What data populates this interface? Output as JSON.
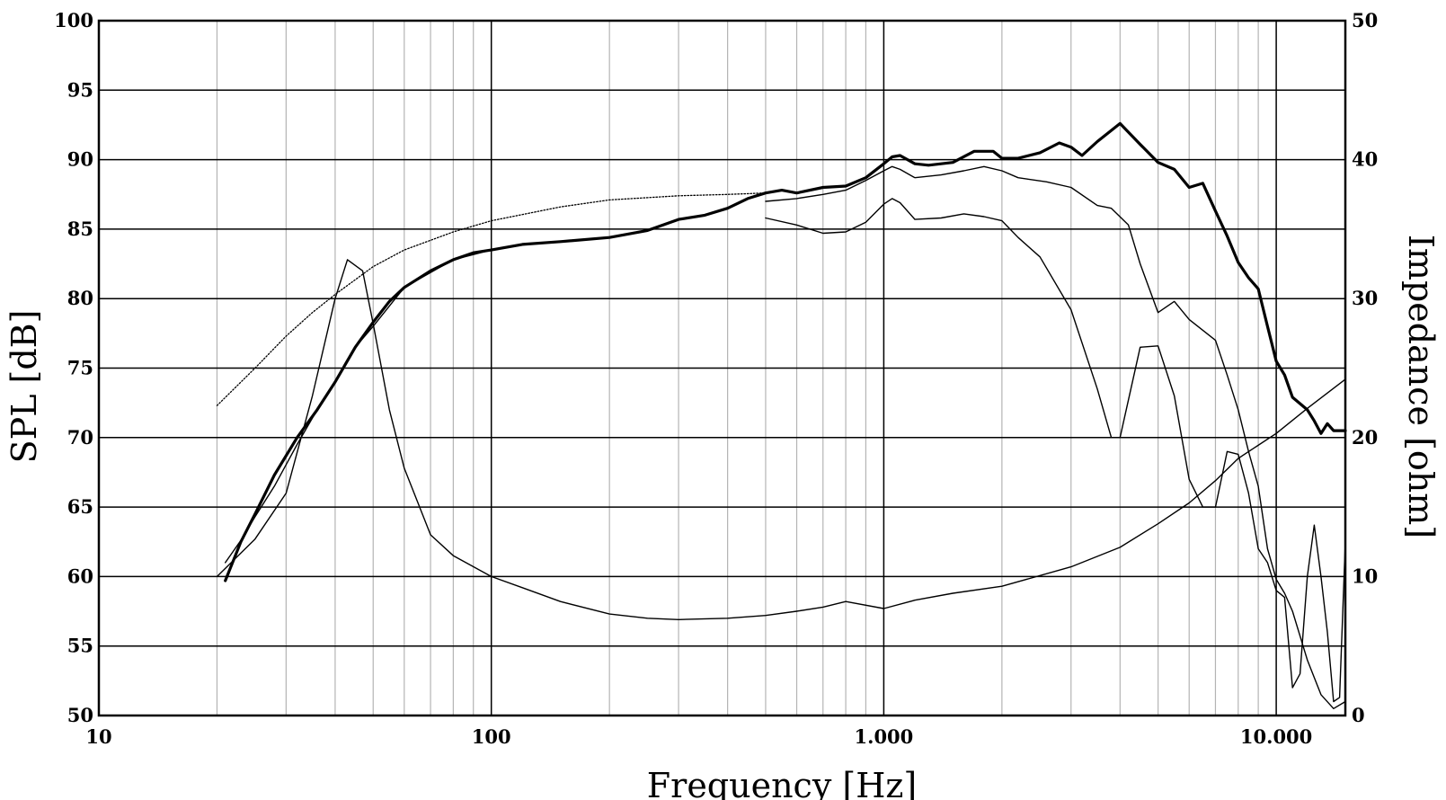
{
  "chart_data": {
    "type": "line",
    "title": "",
    "xlabel": "Frequency [Hz]",
    "ylabel": "SPL [dB]",
    "y2label": "Impedance [ohm]",
    "x_scale": "log",
    "xlim": [
      10,
      15000
    ],
    "ylim": [
      50,
      100
    ],
    "y2lim": [
      0,
      50
    ],
    "grid": true,
    "x_ticks": [
      {
        "value": 10,
        "label": "10"
      },
      {
        "value": 100,
        "label": "100"
      },
      {
        "value": 1000,
        "label": "1.000"
      },
      {
        "value": 10000,
        "label": "10.000"
      }
    ],
    "y_ticks": [
      {
        "value": 50,
        "label": "50"
      },
      {
        "value": 55,
        "label": "55"
      },
      {
        "value": 60,
        "label": "60"
      },
      {
        "value": 65,
        "label": "65"
      },
      {
        "value": 70,
        "label": "70"
      },
      {
        "value": 75,
        "label": "75"
      },
      {
        "value": 80,
        "label": "80"
      },
      {
        "value": 85,
        "label": "85"
      },
      {
        "value": 90,
        "label": "90"
      },
      {
        "value": 95,
        "label": "95"
      },
      {
        "value": 100,
        "label": "100"
      }
    ],
    "y2_ticks": [
      {
        "value": 0,
        "label": "0"
      },
      {
        "value": 10,
        "label": "10"
      },
      {
        "value": 20,
        "label": "20"
      },
      {
        "value": 30,
        "label": "30"
      },
      {
        "value": 40,
        "label": "40"
      },
      {
        "value": 50,
        "label": "50"
      }
    ],
    "series": [
      {
        "axis": "left",
        "style": "thick",
        "points": [
          [
            21,
            59.7
          ],
          [
            23,
            62.5
          ],
          [
            25,
            64.5
          ],
          [
            28,
            67.3
          ],
          [
            32,
            70
          ],
          [
            36,
            72
          ],
          [
            40,
            74
          ],
          [
            45,
            76.5
          ],
          [
            50,
            78.3
          ],
          [
            55,
            79.8
          ],
          [
            60,
            80.8
          ],
          [
            70,
            82
          ],
          [
            80,
            82.8
          ],
          [
            90,
            83.3
          ],
          [
            100,
            83.5
          ],
          [
            120,
            83.9
          ],
          [
            150,
            84.1
          ],
          [
            200,
            84.4
          ],
          [
            250,
            84.9
          ],
          [
            300,
            85.7
          ],
          [
            350,
            86
          ],
          [
            400,
            86.5
          ],
          [
            450,
            87.2
          ],
          [
            500,
            87.6
          ],
          [
            550,
            87.8
          ],
          [
            600,
            87.6
          ],
          [
            700,
            88
          ],
          [
            800,
            88.1
          ],
          [
            900,
            88.7
          ],
          [
            1000,
            89.7
          ],
          [
            1050,
            90.2
          ],
          [
            1100,
            90.3
          ],
          [
            1200,
            89.7
          ],
          [
            1300,
            89.6
          ],
          [
            1500,
            89.8
          ],
          [
            1700,
            90.6
          ],
          [
            1900,
            90.6
          ],
          [
            2000,
            90.1
          ],
          [
            2200,
            90.1
          ],
          [
            2500,
            90.5
          ],
          [
            2800,
            91.2
          ],
          [
            3000,
            90.9
          ],
          [
            3200,
            90.3
          ],
          [
            3500,
            91.3
          ],
          [
            4000,
            92.6
          ],
          [
            4500,
            91.1
          ],
          [
            5000,
            89.8
          ],
          [
            5500,
            89.3
          ],
          [
            6000,
            88
          ],
          [
            6500,
            88.3
          ],
          [
            7000,
            86.3
          ],
          [
            7500,
            84.5
          ],
          [
            8000,
            82.6
          ],
          [
            8500,
            81.5
          ],
          [
            9000,
            80.7
          ],
          [
            9500,
            78
          ],
          [
            10000,
            75.5
          ],
          [
            10500,
            74.5
          ],
          [
            11000,
            72.9
          ],
          [
            12000,
            72
          ],
          [
            12500,
            71.2
          ],
          [
            13000,
            70.3
          ],
          [
            13500,
            71
          ],
          [
            14000,
            70.5
          ],
          [
            15000,
            70.5
          ]
        ]
      },
      {
        "axis": "left",
        "style": "thin",
        "points": [
          [
            21,
            61
          ],
          [
            23,
            62.6
          ],
          [
            25,
            64.3
          ],
          [
            28,
            66.5
          ],
          [
            32,
            69.5
          ],
          [
            36,
            72
          ],
          [
            40,
            74
          ],
          [
            45,
            76.5
          ],
          [
            50,
            78
          ],
          [
            60,
            80.8
          ],
          [
            80,
            82.8
          ],
          [
            100,
            83.5
          ]
        ]
      },
      {
        "axis": "left",
        "style": "thin",
        "points": [
          [
            500,
            87
          ],
          [
            600,
            87.2
          ],
          [
            700,
            87.5
          ],
          [
            800,
            87.8
          ],
          [
            900,
            88.5
          ],
          [
            1000,
            89.2
          ],
          [
            1050,
            89.5
          ],
          [
            1100,
            89.3
          ],
          [
            1200,
            88.7
          ],
          [
            1400,
            88.9
          ],
          [
            1600,
            89.2
          ],
          [
            1800,
            89.5
          ],
          [
            2000,
            89.2
          ],
          [
            2200,
            88.7
          ],
          [
            2600,
            88.4
          ],
          [
            3000,
            88
          ],
          [
            3500,
            86.7
          ],
          [
            3800,
            86.5
          ],
          [
            4200,
            85.3
          ],
          [
            4500,
            82.5
          ],
          [
            5000,
            79
          ],
          [
            5500,
            79.8
          ],
          [
            6000,
            78.5
          ],
          [
            7000,
            77
          ],
          [
            7500,
            74.5
          ],
          [
            8000,
            72
          ],
          [
            8500,
            69
          ],
          [
            9000,
            66.5
          ],
          [
            9500,
            62
          ],
          [
            10000,
            59.8
          ],
          [
            10500,
            58.8
          ],
          [
            11000,
            57.5
          ],
          [
            12000,
            54
          ],
          [
            13000,
            51.5
          ],
          [
            14000,
            50.5
          ],
          [
            15000,
            51
          ]
        ]
      },
      {
        "axis": "left",
        "style": "thin",
        "points": [
          [
            500,
            85.8
          ],
          [
            600,
            85.3
          ],
          [
            700,
            84.7
          ],
          [
            800,
            84.8
          ],
          [
            900,
            85.5
          ],
          [
            1000,
            86.8
          ],
          [
            1050,
            87.2
          ],
          [
            1100,
            86.9
          ],
          [
            1200,
            85.7
          ],
          [
            1400,
            85.8
          ],
          [
            1600,
            86.1
          ],
          [
            1800,
            85.9
          ],
          [
            2000,
            85.6
          ],
          [
            2200,
            84.4
          ],
          [
            2500,
            83
          ],
          [
            3000,
            79.2
          ],
          [
            3500,
            73.5
          ],
          [
            3800,
            70
          ],
          [
            4000,
            70
          ],
          [
            4500,
            76.5
          ],
          [
            5000,
            76.6
          ],
          [
            5500,
            73
          ],
          [
            6000,
            67
          ],
          [
            6500,
            65
          ],
          [
            7000,
            65
          ],
          [
            7500,
            69
          ],
          [
            8000,
            68.8
          ],
          [
            8500,
            66
          ],
          [
            9000,
            62
          ],
          [
            9500,
            61
          ],
          [
            10000,
            59
          ],
          [
            10500,
            58.5
          ],
          [
            11000,
            52
          ],
          [
            11500,
            53
          ],
          [
            12000,
            60
          ],
          [
            12500,
            63.7
          ],
          [
            13000,
            60
          ],
          [
            13500,
            56
          ],
          [
            14000,
            51
          ],
          [
            14500,
            51.3
          ],
          [
            15000,
            62.5
          ]
        ]
      },
      {
        "axis": "left",
        "style": "dotted",
        "points": [
          [
            20,
            72.3
          ],
          [
            25,
            75
          ],
          [
            30,
            77.3
          ],
          [
            35,
            79
          ],
          [
            40,
            80.3
          ],
          [
            50,
            82.3
          ],
          [
            60,
            83.5
          ],
          [
            80,
            84.8
          ],
          [
            100,
            85.6
          ],
          [
            150,
            86.6
          ],
          [
            200,
            87.1
          ],
          [
            300,
            87.4
          ],
          [
            400,
            87.5
          ],
          [
            500,
            87.6
          ]
        ]
      },
      {
        "axis": "right",
        "style": "thin",
        "points": [
          [
            20,
            10
          ],
          [
            25,
            12.7
          ],
          [
            30,
            16
          ],
          [
            35,
            23
          ],
          [
            40,
            30
          ],
          [
            43,
            32.8
          ],
          [
            47,
            32
          ],
          [
            50,
            28.2
          ],
          [
            55,
            22
          ],
          [
            60,
            17.8
          ],
          [
            70,
            13
          ],
          [
            80,
            11.5
          ],
          [
            100,
            10
          ],
          [
            120,
            9.2
          ],
          [
            150,
            8.2
          ],
          [
            200,
            7.3
          ],
          [
            250,
            7
          ],
          [
            300,
            6.9
          ],
          [
            400,
            7
          ],
          [
            500,
            7.2
          ],
          [
            600,
            7.5
          ],
          [
            700,
            7.8
          ],
          [
            800,
            8.2
          ],
          [
            1000,
            7.7
          ],
          [
            1200,
            8.3
          ],
          [
            1500,
            8.8
          ],
          [
            2000,
            9.3
          ],
          [
            3000,
            10.7
          ],
          [
            4000,
            12.1
          ],
          [
            5000,
            13.8
          ],
          [
            6000,
            15.3
          ],
          [
            7000,
            16.9
          ],
          [
            8000,
            18.5
          ],
          [
            10000,
            20.3
          ],
          [
            12000,
            22.1
          ],
          [
            15000,
            24.2
          ]
        ]
      }
    ]
  }
}
